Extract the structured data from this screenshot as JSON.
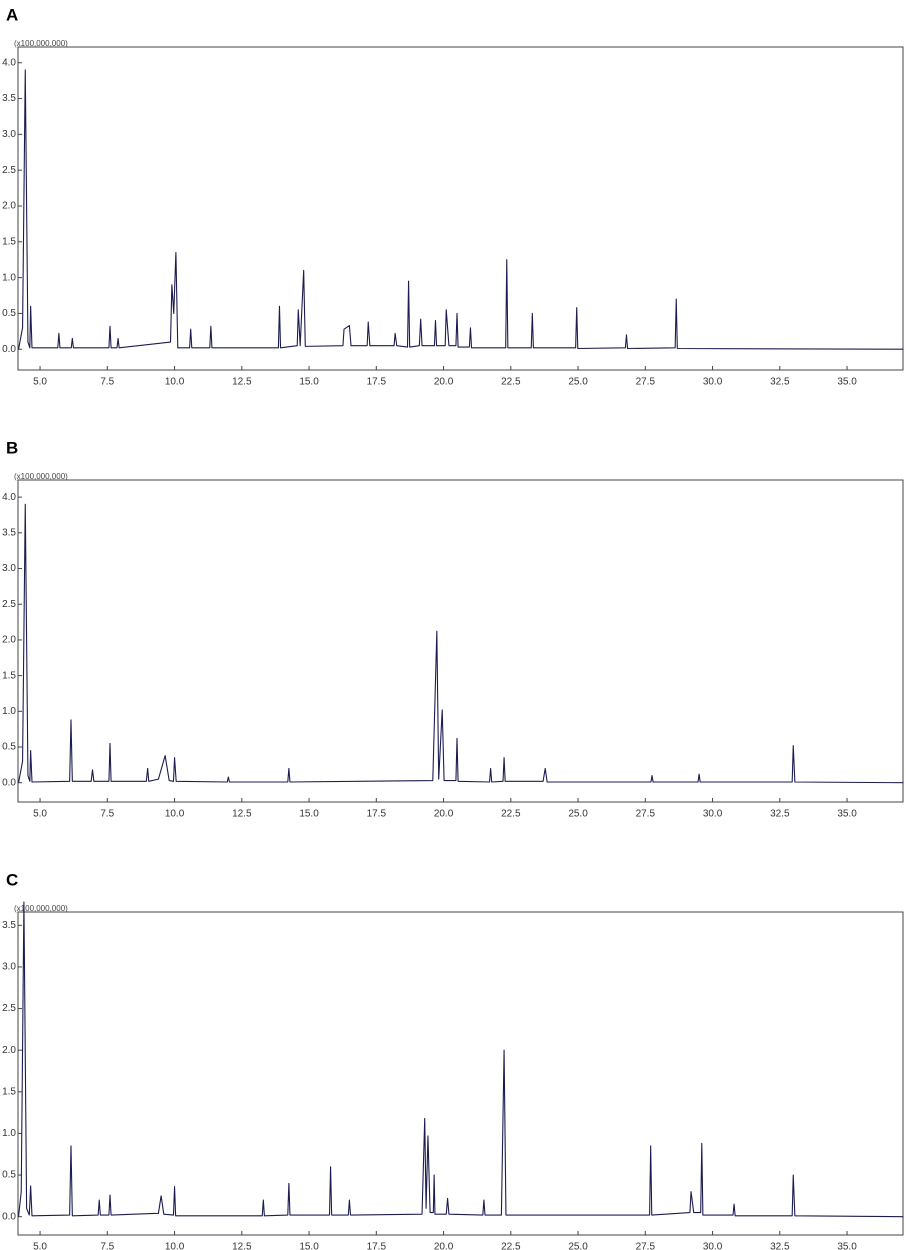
{
  "chart_data": [
    {
      "type": "line",
      "title": "A",
      "ylabel": "(x100,000,000)",
      "color": "#1c1c50",
      "x": [
        4.2,
        4.35,
        4.45,
        4.55,
        4.62,
        4.65,
        4.7,
        5.66,
        5.7,
        5.74,
        6.16,
        6.2,
        6.24,
        7.56,
        7.6,
        7.64,
        7.86,
        7.9,
        7.94,
        9.85,
        9.9,
        9.97,
        10.05,
        10.12,
        10.56,
        10.6,
        10.64,
        11.31,
        11.35,
        11.39,
        13.86,
        13.9,
        13.94,
        14.56,
        14.6,
        14.67,
        14.8,
        14.86,
        16.26,
        16.3,
        16.5,
        16.56,
        17.16,
        17.2,
        17.26,
        18.16,
        18.2,
        18.26,
        18.66,
        18.7,
        18.74,
        19.1,
        19.15,
        19.2,
        19.66,
        19.7,
        19.74,
        20.06,
        20.1,
        20.2,
        20.46,
        20.5,
        20.54,
        20.96,
        21.0,
        21.04,
        22.31,
        22.35,
        22.39,
        23.26,
        23.3,
        23.34,
        24.91,
        24.95,
        24.99,
        26.76,
        26.8,
        26.84,
        28.61,
        28.65,
        28.69,
        37.1
      ],
      "values": [
        0.0,
        0.3,
        3.9,
        0.1,
        0.02,
        0.6,
        0.02,
        0.02,
        0.22,
        0.02,
        0.02,
        0.15,
        0.02,
        0.02,
        0.32,
        0.02,
        0.02,
        0.15,
        0.02,
        0.1,
        0.9,
        0.5,
        1.35,
        0.02,
        0.02,
        0.28,
        0.02,
        0.02,
        0.32,
        0.02,
        0.02,
        0.6,
        0.02,
        0.05,
        0.55,
        0.05,
        1.1,
        0.04,
        0.05,
        0.28,
        0.33,
        0.05,
        0.05,
        0.38,
        0.05,
        0.05,
        0.22,
        0.05,
        0.03,
        0.95,
        0.03,
        0.05,
        0.42,
        0.05,
        0.05,
        0.4,
        0.05,
        0.05,
        0.55,
        0.05,
        0.05,
        0.5,
        0.03,
        0.03,
        0.3,
        0.02,
        0.02,
        1.25,
        0.02,
        0.02,
        0.5,
        0.02,
        0.02,
        0.58,
        0.01,
        0.02,
        0.2,
        0.01,
        0.02,
        0.7,
        0.01,
        0.0
      ],
      "xlim": [
        4.18,
        37.08
      ],
      "ylim": [
        -0.29,
        4.22
      ],
      "xticks": [
        {
          "value": 5,
          "label": "5.0"
        },
        7.5,
        {
          "value": 10,
          "label": "10.0"
        },
        12.5,
        {
          "value": 15,
          "label": "15.0"
        },
        17.5,
        {
          "value": 20,
          "label": "20.0"
        },
        22.5,
        {
          "value": 25,
          "label": "25.0"
        },
        27.5,
        {
          "value": 30,
          "label": "30.0"
        },
        32.5,
        {
          "value": 35,
          "label": "35.0"
        }
      ],
      "yticks": [
        {
          "value": 0,
          "label": "0.0"
        },
        0.5,
        {
          "value": 1,
          "label": "1.0"
        },
        1.5,
        {
          "value": 2,
          "label": "2.0"
        },
        2.5,
        {
          "value": 3,
          "label": "3.0"
        },
        3.5,
        {
          "value": 4,
          "label": "4.0"
        }
      ]
    },
    {
      "type": "line",
      "title": "B",
      "ylabel": "(x100,000,000)",
      "color": "#1c1c50",
      "x": [
        4.2,
        4.35,
        4.45,
        4.55,
        4.62,
        4.65,
        4.7,
        6.1,
        6.15,
        6.2,
        6.9,
        6.95,
        7.0,
        7.56,
        7.6,
        7.64,
        8.95,
        9.0,
        9.04,
        9.4,
        9.65,
        9.8,
        9.96,
        10.0,
        10.06,
        11.96,
        12.0,
        12.04,
        14.21,
        14.25,
        14.29,
        19.6,
        19.75,
        19.82,
        19.95,
        20.02,
        20.46,
        20.5,
        20.54,
        21.71,
        21.75,
        21.79,
        22.21,
        22.25,
        22.29,
        23.7,
        23.78,
        23.85,
        27.71,
        27.75,
        27.79,
        29.46,
        29.5,
        29.54,
        32.96,
        33.0,
        33.06,
        37.1
      ],
      "values": [
        0.0,
        0.3,
        3.9,
        0.1,
        0.02,
        0.45,
        0.01,
        0.02,
        0.88,
        0.02,
        0.02,
        0.18,
        0.02,
        0.02,
        0.55,
        0.02,
        0.02,
        0.2,
        0.02,
        0.05,
        0.38,
        0.03,
        0.02,
        0.35,
        0.02,
        0.01,
        0.08,
        0.01,
        0.01,
        0.2,
        0.01,
        0.03,
        2.12,
        0.05,
        1.02,
        0.03,
        0.03,
        0.62,
        0.02,
        0.01,
        0.2,
        0.01,
        0.02,
        0.35,
        0.02,
        0.02,
        0.2,
        0.01,
        0.01,
        0.1,
        0.01,
        0.01,
        0.12,
        0.01,
        0.01,
        0.52,
        0.01,
        0.0
      ],
      "xlim": [
        4.18,
        37.08
      ],
      "ylim": [
        -0.27,
        4.24
      ],
      "xticks": [
        {
          "value": 5,
          "label": "5.0"
        },
        7.5,
        {
          "value": 10,
          "label": "10.0"
        },
        12.5,
        {
          "value": 15,
          "label": "15.0"
        },
        17.5,
        {
          "value": 20,
          "label": "20.0"
        },
        22.5,
        {
          "value": 25,
          "label": "25.0"
        },
        27.5,
        {
          "value": 30,
          "label": "30.0"
        },
        32.5,
        {
          "value": 35,
          "label": "35.0"
        }
      ],
      "yticks": [
        {
          "value": 0,
          "label": "0.0"
        },
        0.5,
        {
          "value": 1,
          "label": "1.0"
        },
        1.5,
        {
          "value": 2,
          "label": "2.0"
        },
        2.5,
        {
          "value": 3,
          "label": "3.0"
        },
        3.5,
        {
          "value": 4,
          "label": "4.0"
        }
      ]
    },
    {
      "type": "line",
      "title": "C",
      "ylabel": "(x100,000,000)",
      "color": "#1c1c50",
      "x": [
        4.2,
        4.3,
        4.4,
        4.5,
        4.6,
        4.65,
        4.7,
        6.1,
        6.15,
        6.2,
        7.16,
        7.2,
        7.24,
        7.56,
        7.6,
        7.64,
        9.4,
        9.5,
        9.6,
        9.96,
        10.0,
        10.04,
        13.26,
        13.3,
        13.34,
        14.21,
        14.25,
        14.29,
        15.76,
        15.8,
        15.84,
        16.46,
        16.5,
        16.54,
        19.2,
        19.3,
        19.35,
        19.42,
        19.5,
        19.62,
        19.65,
        19.68,
        20.1,
        20.15,
        20.2,
        21.46,
        21.5,
        21.54,
        22.15,
        22.25,
        22.32,
        27.66,
        27.7,
        27.74,
        29.16,
        29.2,
        29.3,
        29.56,
        29.6,
        29.64,
        30.76,
        30.8,
        30.84,
        32.96,
        33.0,
        33.06,
        37.1
      ],
      "values": [
        0.0,
        0.3,
        3.78,
        0.1,
        0.02,
        0.37,
        0.01,
        0.02,
        0.85,
        0.01,
        0.02,
        0.2,
        0.02,
        0.02,
        0.26,
        0.02,
        0.04,
        0.25,
        0.03,
        0.02,
        0.36,
        0.01,
        0.01,
        0.2,
        0.01,
        0.02,
        0.4,
        0.02,
        0.02,
        0.6,
        0.02,
        0.02,
        0.2,
        0.02,
        0.03,
        1.18,
        0.1,
        0.97,
        0.05,
        0.05,
        0.5,
        0.03,
        0.03,
        0.22,
        0.03,
        0.02,
        0.2,
        0.02,
        0.02,
        2.0,
        0.02,
        0.02,
        0.85,
        0.02,
        0.05,
        0.3,
        0.05,
        0.05,
        0.88,
        0.02,
        0.02,
        0.15,
        0.01,
        0.01,
        0.5,
        0.01,
        0.0
      ],
      "xlim": [
        4.18,
        37.08
      ],
      "ylim": [
        -0.22,
        3.66
      ],
      "xticks": [
        {
          "value": 5,
          "label": "5.0"
        },
        7.5,
        {
          "value": 10,
          "label": "10.0"
        },
        12.5,
        {
          "value": 15,
          "label": "15.0"
        },
        17.5,
        {
          "value": 20,
          "label": "20.0"
        },
        22.5,
        {
          "value": 25,
          "label": "25.0"
        },
        27.5,
        {
          "value": 30,
          "label": "30.0"
        },
        32.5,
        {
          "value": 35,
          "label": "35.0"
        }
      ],
      "yticks": [
        {
          "value": 0,
          "label": "0.0"
        },
        0.5,
        {
          "value": 1,
          "label": "1.0"
        },
        1.5,
        {
          "value": 2,
          "label": "2.0"
        },
        2.5,
        {
          "value": 3,
          "label": "3.0"
        },
        3.5
      ]
    }
  ]
}
